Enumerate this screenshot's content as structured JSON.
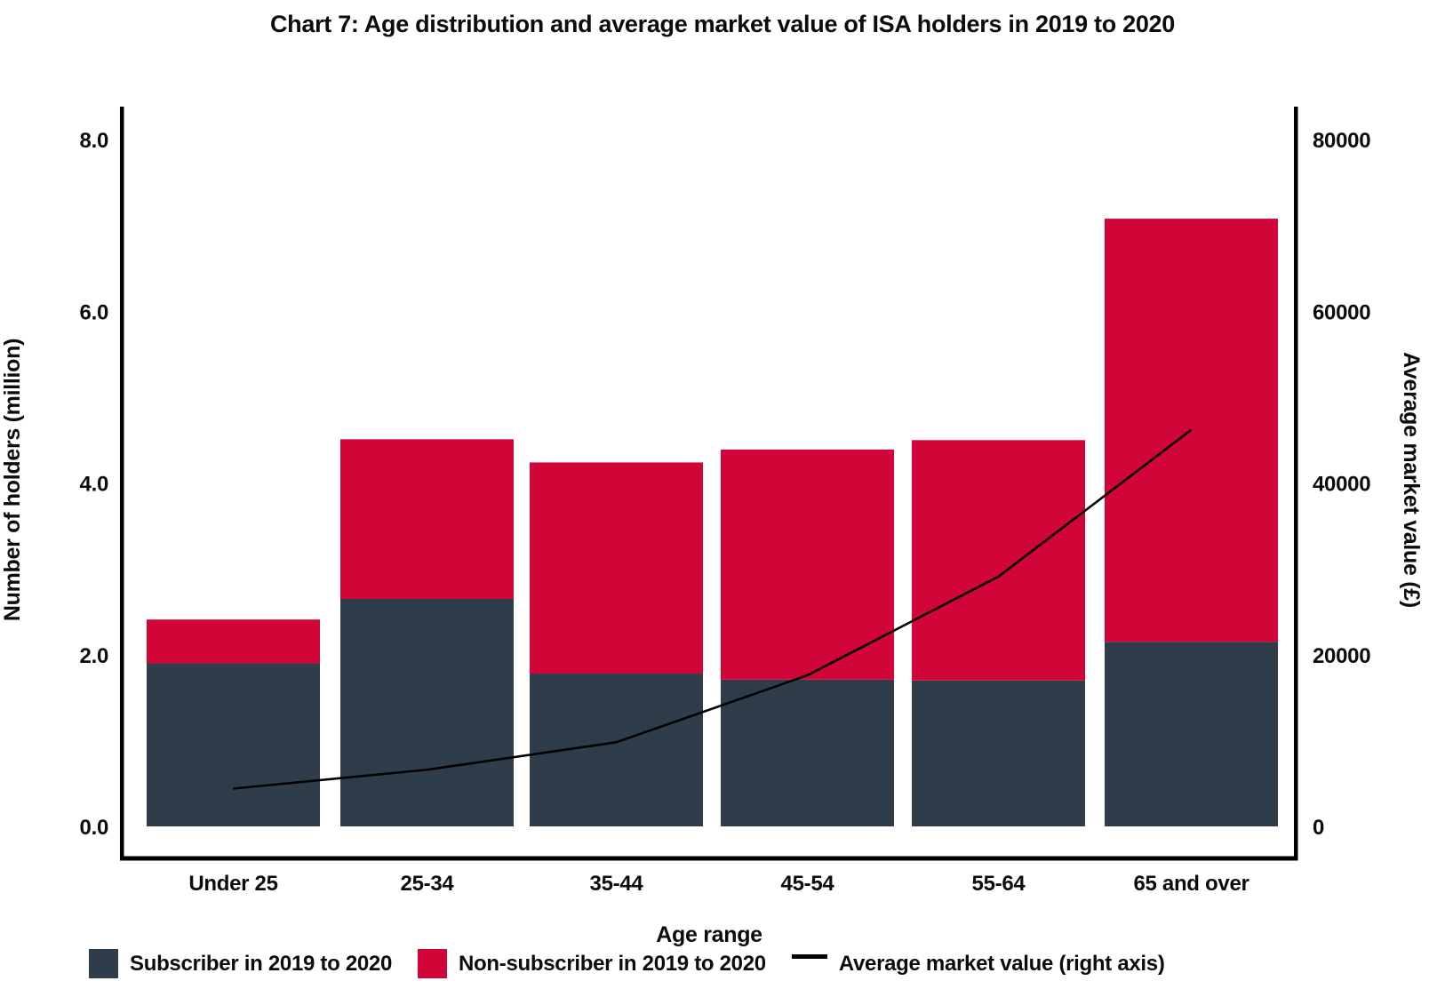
{
  "chart": {
    "title": "Chart 7: Age distribution and average market value of ISA holders in 2019 to 2020",
    "x_axis_title": "Age range",
    "left_axis_title": "Number of holders (million)",
    "right_axis_title": "Average market value (£)"
  },
  "chart_data": {
    "type": "bar",
    "subtype": "stacked bars with overlaid line on secondary axis",
    "categories": [
      "Under 25",
      "25-34",
      "35-44",
      "45-54",
      "55-64",
      "65 and over"
    ],
    "series": [
      {
        "name": "Subscriber in 2019 to 2020",
        "type": "bar",
        "stack": true,
        "axis": "left",
        "color": "#2f3d4a",
        "values": [
          1.9,
          2.65,
          1.78,
          1.71,
          1.7,
          2.15
        ]
      },
      {
        "name": "Non-subscriber in 2019 to 2020",
        "type": "bar",
        "stack": true,
        "axis": "left",
        "color": "#d20538",
        "values": [
          0.51,
          1.86,
          2.46,
          2.68,
          2.8,
          4.93
        ]
      },
      {
        "name": "Average market value (right axis)",
        "type": "line",
        "axis": "right",
        "color": "#000000",
        "values": [
          4400,
          6600,
          9800,
          17600,
          29100,
          46200
        ]
      }
    ],
    "title": "Chart 7: Age distribution and average market value of ISA holders in 2019 to 2020",
    "xlabel": "Age range",
    "ylabel_left": "Number of holders (million)",
    "ylabel_right": "Average market value (£)",
    "left_axis": {
      "ticks": [
        0,
        2,
        4,
        6,
        8
      ],
      "tick_labels": [
        "0.0",
        "2.0",
        "4.0",
        "6.0",
        "8.0"
      ],
      "range": [
        0,
        8.4
      ]
    },
    "right_axis": {
      "ticks": [
        0,
        20000,
        40000,
        60000,
        80000
      ],
      "tick_labels": [
        "0",
        "20000",
        "40000",
        "60000",
        "80000"
      ],
      "range": [
        0,
        84000
      ]
    },
    "grid": false,
    "legend_position": "bottom"
  },
  "legend": {
    "subscriber_label": "Subscriber in 2019 to 2020",
    "non_subscriber_label": "Non-subscriber in 2019 to 2020",
    "line_label": "Average market value (right axis)"
  },
  "colors": {
    "subscriber": "#2f3d4a",
    "non_subscriber": "#d20538",
    "line": "#000000",
    "axis": "#000000",
    "text": "#0b0c0c"
  }
}
